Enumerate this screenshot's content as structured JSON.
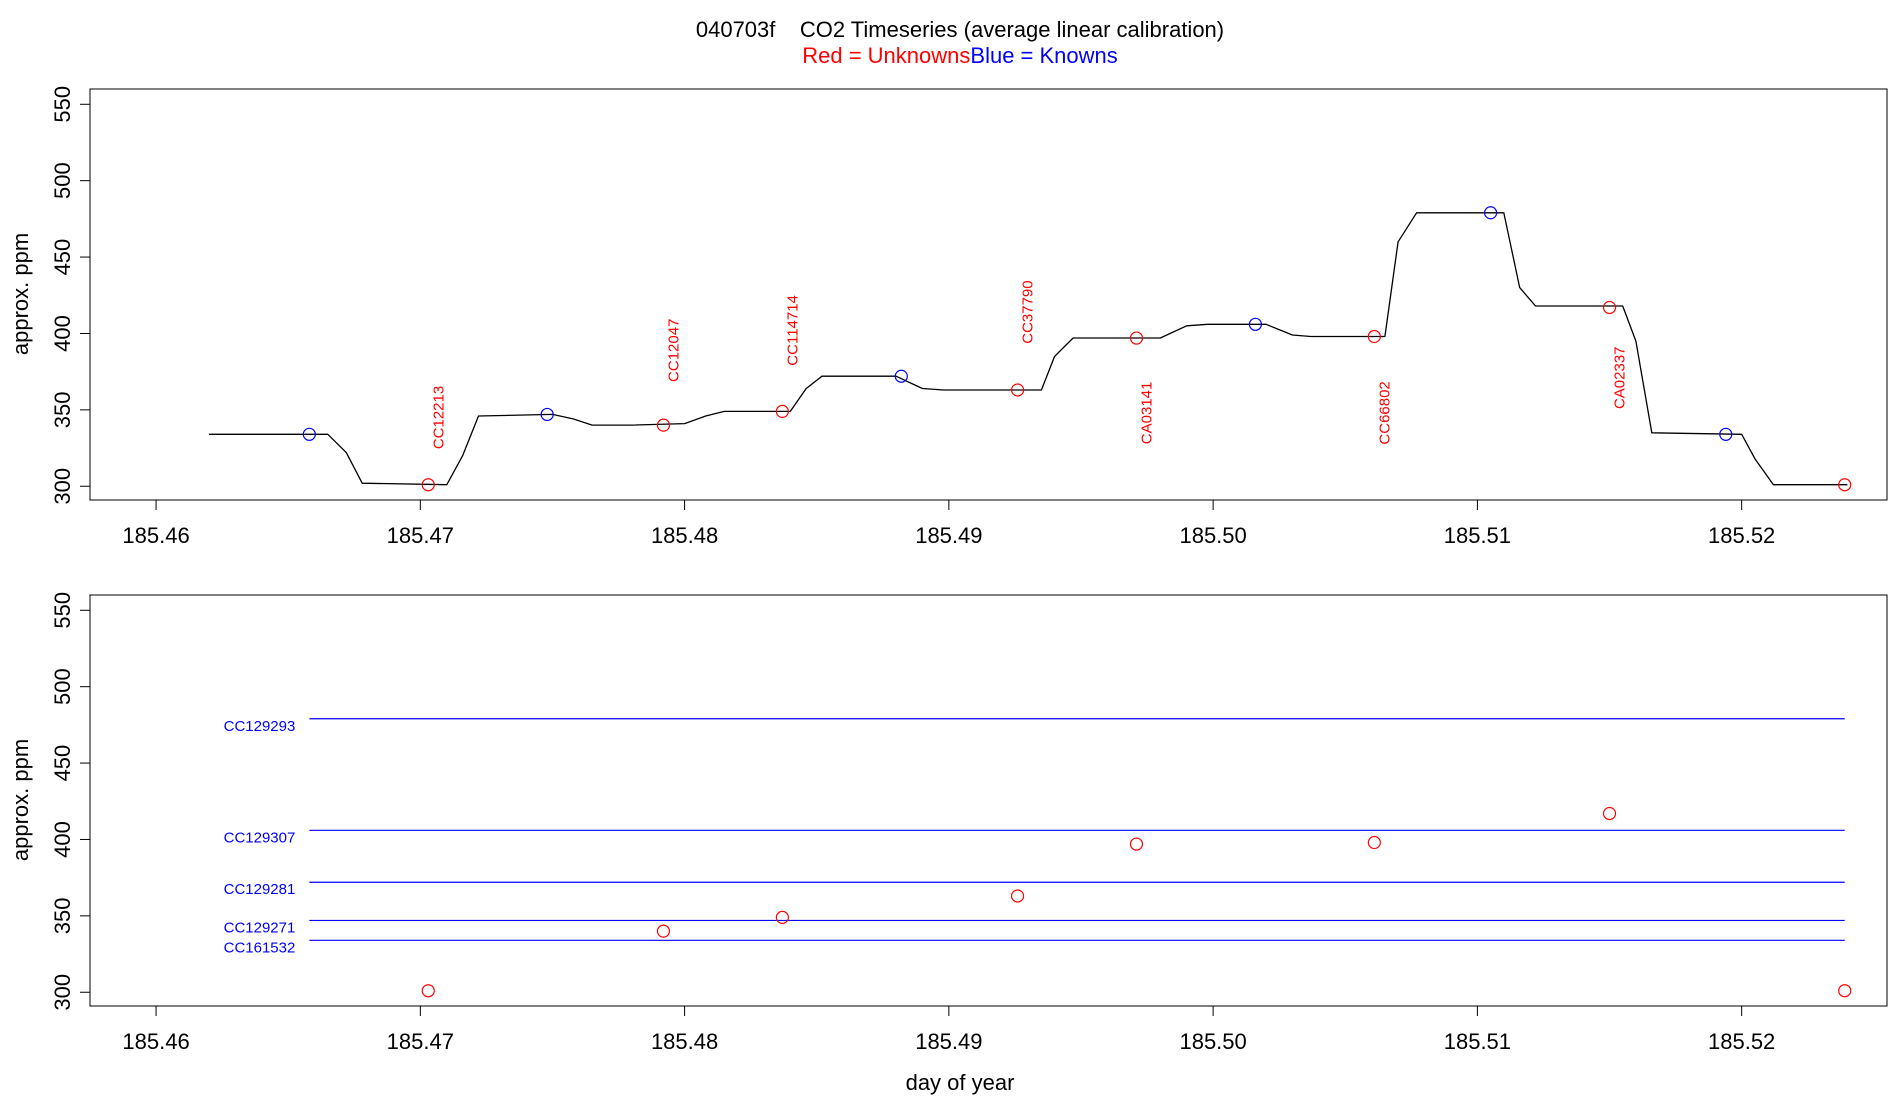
{
  "header": {
    "title": "040703f    CO2 Timeseries (average linear calibration)",
    "legend_red": "Red = Unknowns",
    "legend_blue": "Blue = Knowns"
  },
  "colors": {
    "unknown": "#ff0000",
    "known": "#0000ff",
    "trace": "#000000",
    "axis": "#000000"
  },
  "chart_data": [
    {
      "type": "line",
      "ylabel": "approx. ppm",
      "xlabel": "",
      "xlim": [
        185.4575,
        185.5255
      ],
      "ylim": [
        291,
        560
      ],
      "xticks": [
        185.46,
        185.47,
        185.48,
        185.49,
        185.5,
        185.51,
        185.52
      ],
      "xtick_labels": [
        "185.46",
        "185.47",
        "185.48",
        "185.49",
        "185.50",
        "185.51",
        "185.52"
      ],
      "yticks": [
        300,
        350,
        400,
        450,
        500,
        550
      ],
      "ytick_labels": [
        "300",
        "350",
        "400",
        "450",
        "500",
        "550"
      ],
      "trace": {
        "x": [
          185.462,
          185.4665,
          185.4672,
          185.4678,
          185.471,
          185.4716,
          185.4722,
          185.475,
          185.4758,
          185.4765,
          185.478,
          185.48,
          185.4808,
          185.4815,
          185.484,
          185.4846,
          185.4852,
          185.488,
          185.489,
          185.4898,
          185.4935,
          185.494,
          185.4947,
          185.498,
          185.499,
          185.4998,
          185.502,
          185.503,
          185.5037,
          185.5065,
          185.507,
          185.5077,
          185.511,
          185.5116,
          185.5122,
          185.5155,
          185.516,
          185.5166,
          185.52,
          185.5205,
          185.5212,
          185.524
        ],
        "y": [
          334,
          334,
          322,
          302,
          301,
          320,
          346,
          347,
          344,
          340,
          340,
          341,
          346,
          349,
          349,
          364,
          372,
          372,
          364,
          363,
          363,
          385,
          397,
          397,
          405,
          406,
          406,
          399,
          398,
          398,
          460,
          479,
          479,
          430,
          418,
          418,
          395,
          335,
          334,
          318,
          301,
          301
        ]
      },
      "points": [
        {
          "x": 185.4658,
          "y": 334,
          "kind": "known",
          "label": ""
        },
        {
          "x": 185.4703,
          "y": 301,
          "kind": "unknown",
          "label": "CC12213",
          "label_y": 345
        },
        {
          "x": 185.4748,
          "y": 347,
          "kind": "known",
          "label": ""
        },
        {
          "x": 185.4792,
          "y": 340,
          "kind": "unknown",
          "label": "CC12047",
          "label_y": 389
        },
        {
          "x": 185.4837,
          "y": 349,
          "kind": "unknown",
          "label": "CC114714",
          "label_y": 402
        },
        {
          "x": 185.4882,
          "y": 372,
          "kind": "known",
          "label": ""
        },
        {
          "x": 185.4926,
          "y": 363,
          "kind": "unknown",
          "label": "CC37790",
          "label_y": 414
        },
        {
          "x": 185.4971,
          "y": 397,
          "kind": "unknown",
          "label": "CA03141",
          "label_y": 348
        },
        {
          "x": 185.5016,
          "y": 406,
          "kind": "known",
          "label": ""
        },
        {
          "x": 185.5061,
          "y": 398,
          "kind": "unknown",
          "label": "CC66802",
          "label_y": 348
        },
        {
          "x": 185.5105,
          "y": 479,
          "kind": "known",
          "label": ""
        },
        {
          "x": 185.515,
          "y": 417,
          "kind": "unknown",
          "label": "CA02337",
          "label_y": 371
        },
        {
          "x": 185.5194,
          "y": 334,
          "kind": "known",
          "label": ""
        },
        {
          "x": 185.5239,
          "y": 301,
          "kind": "unknown",
          "label": ""
        }
      ]
    },
    {
      "type": "scatter",
      "ylabel": "approx. ppm",
      "xlabel": "day of year",
      "xlim": [
        185.4575,
        185.5255
      ],
      "ylim": [
        291,
        560
      ],
      "xticks": [
        185.46,
        185.47,
        185.48,
        185.49,
        185.5,
        185.51,
        185.52
      ],
      "xtick_labels": [
        "185.46",
        "185.47",
        "185.48",
        "185.49",
        "185.50",
        "185.51",
        "185.52"
      ],
      "yticks": [
        300,
        350,
        400,
        450,
        500,
        550
      ],
      "ytick_labels": [
        "300",
        "350",
        "400",
        "450",
        "500",
        "550"
      ],
      "reference_lines": [
        {
          "name": "CC129293",
          "y": 479,
          "x_start": 185.4658,
          "x_end": 185.5239
        },
        {
          "name": "CC129307",
          "y": 406,
          "x_start": 185.4658,
          "x_end": 185.5239
        },
        {
          "name": "CC129281",
          "y": 372,
          "x_start": 185.4658,
          "x_end": 185.5239
        },
        {
          "name": "CC129271",
          "y": 347,
          "x_start": 185.4658,
          "x_end": 185.5239
        },
        {
          "name": "CC161532",
          "y": 334,
          "x_start": 185.4658,
          "x_end": 185.5239
        }
      ],
      "points": [
        {
          "x": 185.4703,
          "y": 301
        },
        {
          "x": 185.4792,
          "y": 340
        },
        {
          "x": 185.4837,
          "y": 349
        },
        {
          "x": 185.4926,
          "y": 363
        },
        {
          "x": 185.4971,
          "y": 397
        },
        {
          "x": 185.5061,
          "y": 398
        },
        {
          "x": 185.515,
          "y": 417
        },
        {
          "x": 185.5239,
          "y": 301
        }
      ]
    }
  ]
}
